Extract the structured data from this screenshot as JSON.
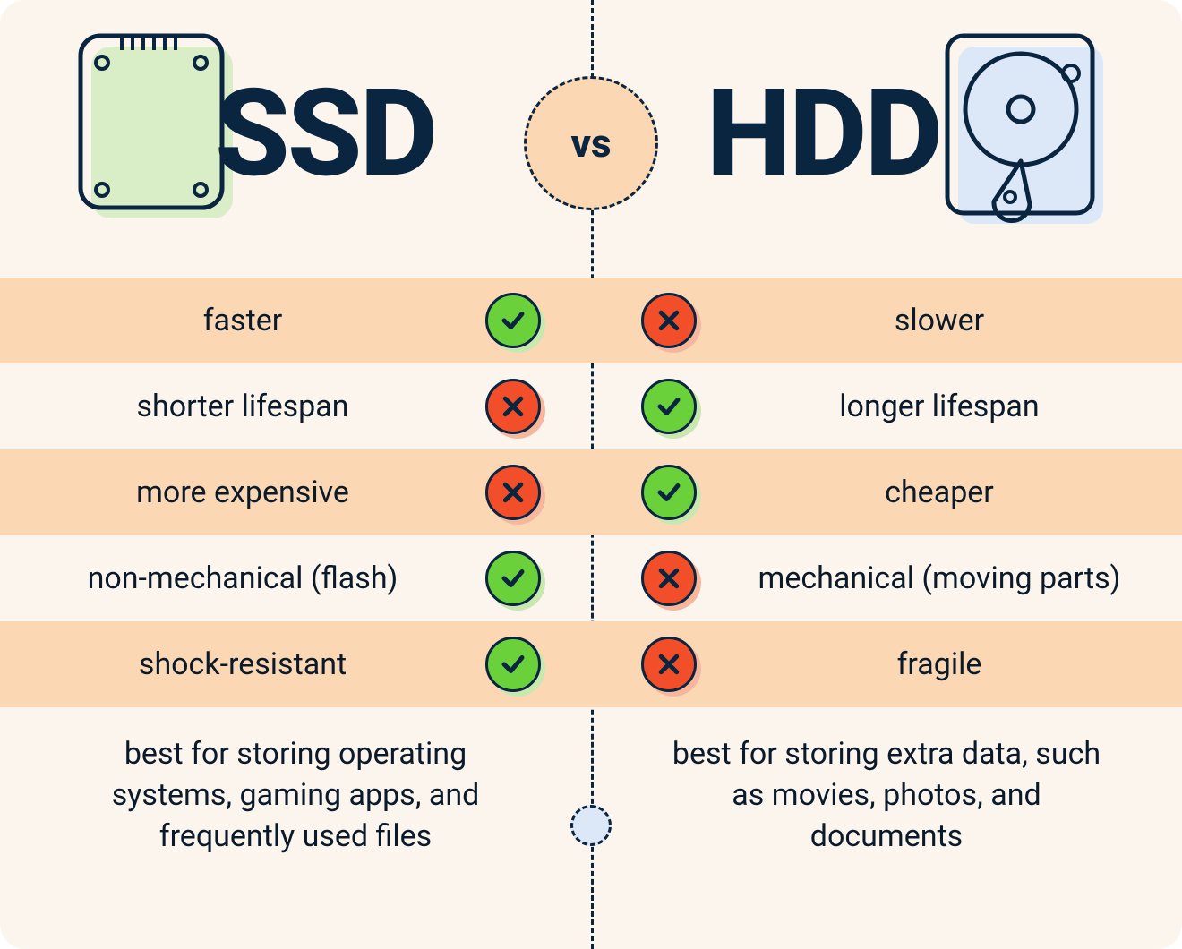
{
  "type": "comparison-infographic",
  "background_color": "#fcf5ee",
  "row_highlight_color": "#fbd7b3",
  "text_color": "#0a1a2a",
  "title_color": "#0a2540",
  "check_color": "#6bd13b",
  "cross_color": "#f24e29",
  "ssd_icon_fill": "#d9edc7",
  "hdd_icon_fill": "#dce8f8",
  "title_left": "SSD",
  "title_right": "HDD",
  "vs_label": "vs",
  "title_fontsize": 135,
  "row_fontsize": 34,
  "summary_fontsize": 34,
  "rows": [
    {
      "left": "faster",
      "left_ok": true,
      "right": "slower",
      "right_ok": false,
      "highlight": true
    },
    {
      "left": "shorter lifespan",
      "left_ok": false,
      "right": "longer lifespan",
      "right_ok": true,
      "highlight": false
    },
    {
      "left": "more expensive",
      "left_ok": false,
      "right": "cheaper",
      "right_ok": true,
      "highlight": true
    },
    {
      "left": "non-mechanical (flash)",
      "left_ok": true,
      "right": "mechanical (moving parts)",
      "right_ok": false,
      "highlight": false
    },
    {
      "left": "shock-resistant",
      "left_ok": true,
      "right": "fragile",
      "right_ok": false,
      "highlight": true
    }
  ],
  "summary_left": "best for storing operating systems, gaming apps, and frequently used files",
  "summary_right": "best for storing extra data, such as movies, photos, and documents"
}
